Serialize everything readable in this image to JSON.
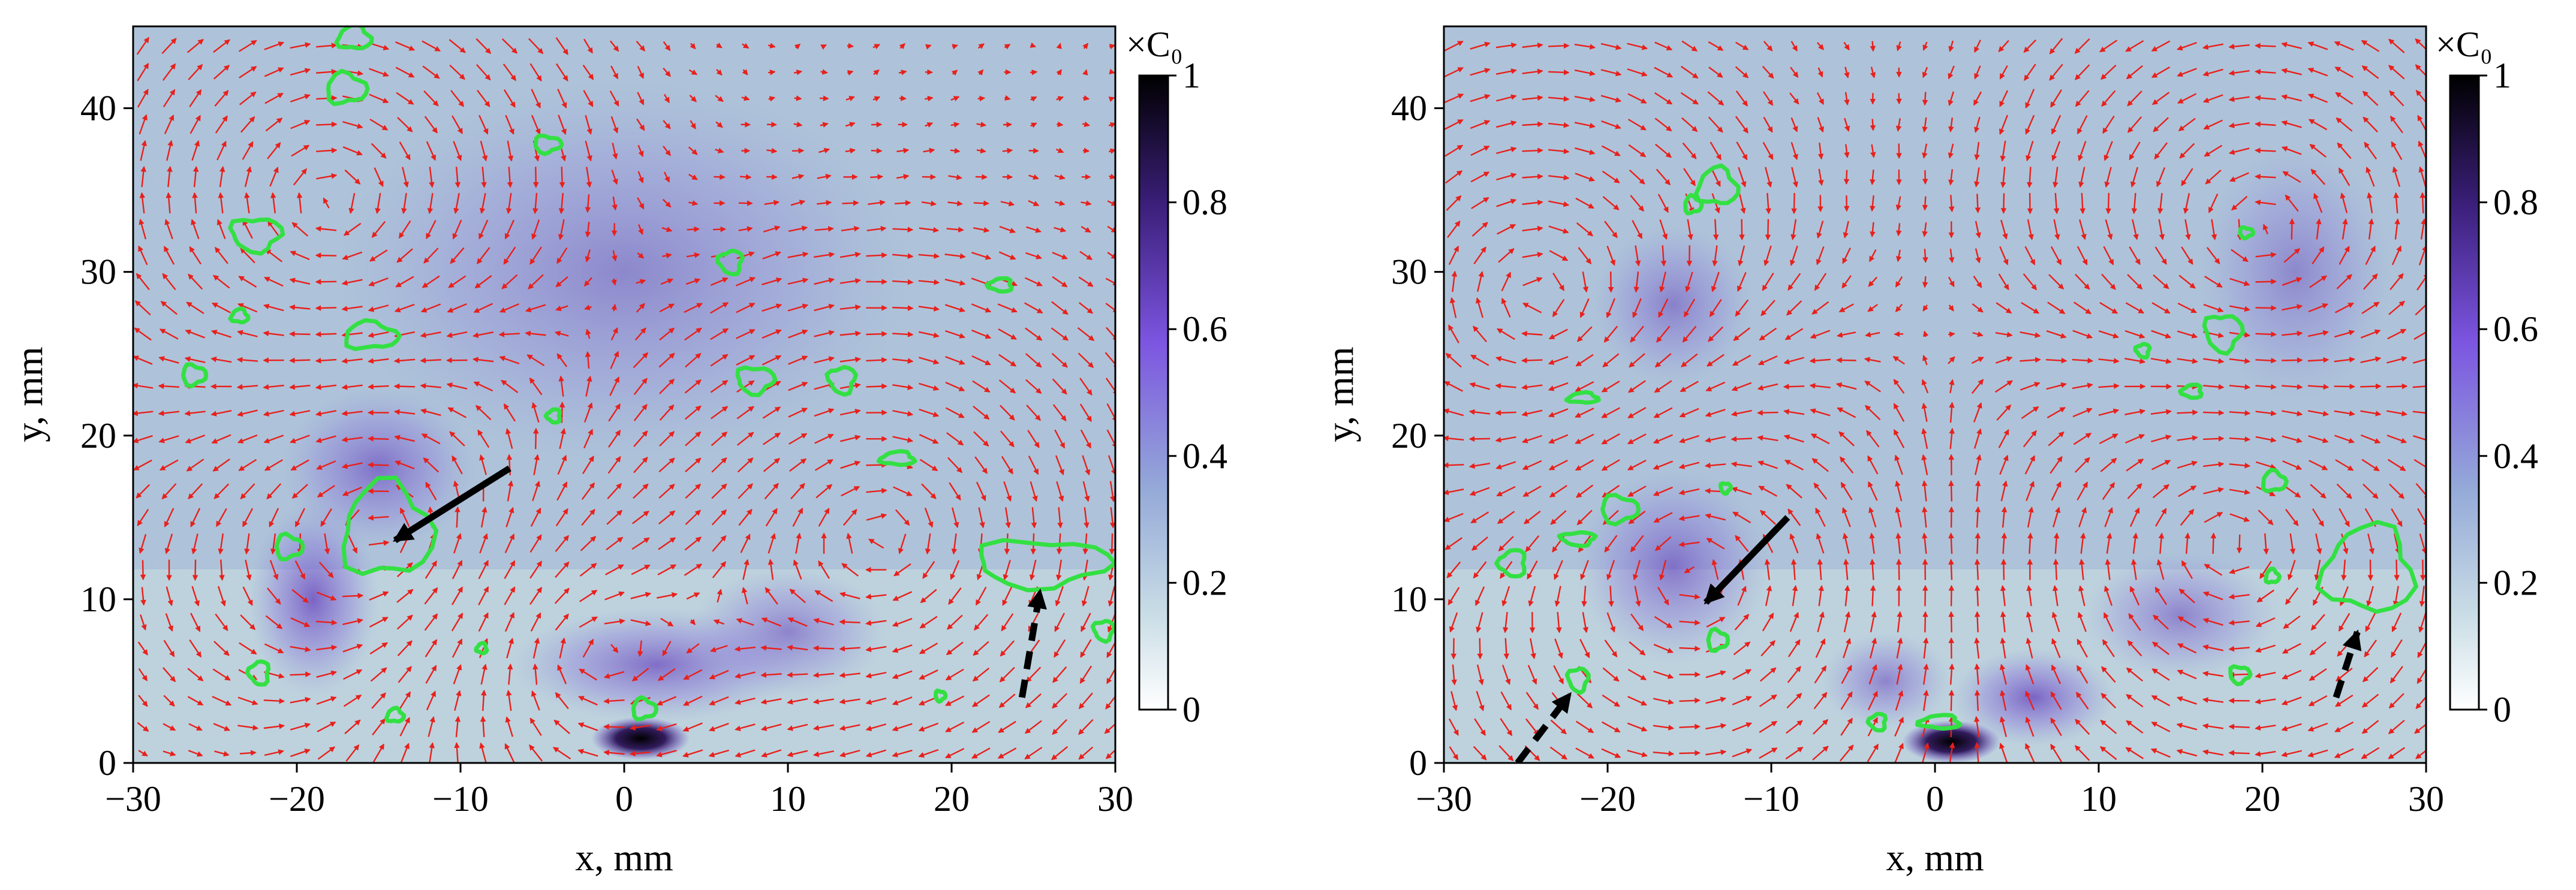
{
  "chart_data": [
    {
      "type": "vector-field",
      "panel": "left",
      "xlabel": "x, mm",
      "ylabel": "y, mm",
      "xlim": [
        -30,
        30
      ],
      "ylim": [
        0,
        45
      ],
      "x_ticks": [
        -30,
        -20,
        -10,
        0,
        10,
        20,
        30
      ],
      "y_ticks": [
        0,
        10,
        20,
        30,
        40
      ],
      "x_tick_labels": [
        "−30",
        "−20",
        "−10",
        "0",
        "10",
        "20",
        "30"
      ],
      "y_tick_labels": [
        "0",
        "10",
        "20",
        "30",
        "40"
      ],
      "vector_color": "#e8201c",
      "contour_color": "#33e043",
      "colorbar": {
        "title": "×C₀",
        "range": [
          0,
          1
        ],
        "ticks": [
          0,
          0.2,
          0.4,
          0.6,
          0.8,
          1
        ],
        "tick_labels": [
          "0",
          "0.2",
          "0.4",
          "0.6",
          "0.8",
          "1"
        ],
        "colors": [
          "#ffffff",
          "#c9dde6",
          "#94a9d8",
          "#7c55e0",
          "#3a1e78",
          "#000000"
        ]
      },
      "vortices": [
        {
          "x": -14,
          "y": 14,
          "rotation": "ccw"
        },
        {
          "x": -18,
          "y": 34,
          "rotation": "cw"
        },
        {
          "x": 16,
          "y": 14,
          "rotation": "cw"
        },
        {
          "x": -3,
          "y": 7,
          "rotation": "cw"
        }
      ],
      "concentration_blobs": [
        {
          "x": 1,
          "y": 1.5,
          "value": 1.0,
          "sx": 3,
          "sy": 1.3
        },
        {
          "x": -19,
          "y": 10,
          "value": 0.42,
          "sx": 4,
          "sy": 6
        },
        {
          "x": -15,
          "y": 18,
          "value": 0.35,
          "sx": 6,
          "sy": 5
        },
        {
          "x": 2,
          "y": 6,
          "value": 0.38,
          "sx": 9,
          "sy": 3.5
        },
        {
          "x": 10,
          "y": 8,
          "value": 0.3,
          "sx": 6,
          "sy": 4
        },
        {
          "x": 0,
          "y": 30,
          "value": 0.25,
          "sx": 18,
          "sy": 12
        }
      ],
      "contours": [
        {
          "x": -16.5,
          "y": 44.3,
          "rx": 1.0,
          "ry": 0.7
        },
        {
          "x": -17,
          "y": 41.2,
          "rx": 1.2,
          "ry": 0.9
        },
        {
          "x": -4.7,
          "y": 37.8,
          "rx": 0.8,
          "ry": 0.5
        },
        {
          "x": -22.5,
          "y": 32.3,
          "rx": 1.5,
          "ry": 1.0
        },
        {
          "x": 6.5,
          "y": 30.6,
          "rx": 0.7,
          "ry": 0.7
        },
        {
          "x": 23,
          "y": 29.2,
          "rx": 0.7,
          "ry": 0.4
        },
        {
          "x": -23.5,
          "y": 27.3,
          "rx": 0.5,
          "ry": 0.4
        },
        {
          "x": -15.5,
          "y": 26.1,
          "rx": 1.6,
          "ry": 0.8
        },
        {
          "x": -26.3,
          "y": 23.7,
          "rx": 0.7,
          "ry": 0.6
        },
        {
          "x": 8,
          "y": 23.4,
          "rx": 1.1,
          "ry": 0.8
        },
        {
          "x": 13.3,
          "y": 23.4,
          "rx": 0.8,
          "ry": 0.8
        },
        {
          "x": -4.3,
          "y": 21.2,
          "rx": 0.4,
          "ry": 0.4
        },
        {
          "x": 16.7,
          "y": 18.6,
          "rx": 1.0,
          "ry": 0.4
        },
        {
          "x": -14.5,
          "y": 14.2,
          "rx": 2.7,
          "ry": 2.8
        },
        {
          "x": -20.5,
          "y": 13.2,
          "rx": 0.8,
          "ry": 0.7
        },
        {
          "x": 25.5,
          "y": 12.2,
          "rx": 4.0,
          "ry": 1.4
        },
        {
          "x": 29.3,
          "y": 8.1,
          "rx": 0.6,
          "ry": 0.6
        },
        {
          "x": -22.3,
          "y": 5.5,
          "rx": 0.6,
          "ry": 0.7
        },
        {
          "x": -8.7,
          "y": 7.0,
          "rx": 0.3,
          "ry": 0.3
        },
        {
          "x": -14,
          "y": 2.9,
          "rx": 0.5,
          "ry": 0.4
        },
        {
          "x": 1.2,
          "y": 3.3,
          "rx": 0.7,
          "ry": 0.6
        },
        {
          "x": 19.3,
          "y": 4.1,
          "rx": 0.3,
          "ry": 0.3
        }
      ],
      "arrows": [
        {
          "from": [
            -7,
            18
          ],
          "to": [
            -14,
            13.6
          ],
          "style": "solid"
        },
        {
          "from": [
            24.3,
            4
          ],
          "to": [
            25.4,
            10.5
          ],
          "style": "dashed"
        }
      ]
    },
    {
      "type": "vector-field",
      "panel": "right",
      "xlabel": "x, mm",
      "ylabel": "y, mm",
      "xlim": [
        -30,
        30
      ],
      "ylim": [
        0,
        45
      ],
      "x_ticks": [
        -30,
        -20,
        -10,
        0,
        10,
        20,
        30
      ],
      "y_ticks": [
        0,
        10,
        20,
        30,
        40
      ],
      "x_tick_labels": [
        "−30",
        "−20",
        "−10",
        "0",
        "10",
        "20",
        "30"
      ],
      "y_tick_labels": [
        "0",
        "10",
        "20",
        "30",
        "40"
      ],
      "vector_color": "#e8201c",
      "contour_color": "#33e043",
      "colorbar": {
        "title": "×C₀",
        "range": [
          0,
          1
        ],
        "ticks": [
          0,
          0.2,
          0.4,
          0.6,
          0.8,
          1
        ],
        "tick_labels": [
          "0",
          "0.2",
          "0.4",
          "0.6",
          "0.8",
          "1"
        ],
        "colors": [
          "#ffffff",
          "#c9dde6",
          "#94a9d8",
          "#7c55e0",
          "#3a1e78",
          "#000000"
        ]
      },
      "vortices": [
        {
          "x": -15,
          "y": 12,
          "rotation": "ccw"
        },
        {
          "x": -24,
          "y": 28,
          "rotation": "cw"
        },
        {
          "x": 18,
          "y": 14,
          "rotation": "cw"
        },
        {
          "x": 20,
          "y": 32,
          "rotation": "ccw"
        }
      ],
      "concentration_blobs": [
        {
          "x": 1,
          "y": 1.3,
          "value": 1.0,
          "sx": 3,
          "sy": 1.3
        },
        {
          "x": -16,
          "y": 12,
          "value": 0.35,
          "sx": 6,
          "sy": 6
        },
        {
          "x": 6,
          "y": 4,
          "value": 0.42,
          "sx": 5,
          "sy": 3
        },
        {
          "x": -3,
          "y": 5,
          "value": 0.3,
          "sx": 4,
          "sy": 3
        },
        {
          "x": 15,
          "y": 9,
          "value": 0.3,
          "sx": 6,
          "sy": 4
        },
        {
          "x": -16,
          "y": 28,
          "value": 0.28,
          "sx": 5,
          "sy": 5
        },
        {
          "x": 22,
          "y": 30,
          "value": 0.25,
          "sx": 6,
          "sy": 8
        }
      ],
      "contours": [
        {
          "x": -13.3,
          "y": 35.2,
          "rx": 1.2,
          "ry": 1.1
        },
        {
          "x": -14.8,
          "y": 34.1,
          "rx": 0.5,
          "ry": 0.5
        },
        {
          "x": 19,
          "y": 32.4,
          "rx": 0.4,
          "ry": 0.3
        },
        {
          "x": 17.6,
          "y": 26.3,
          "rx": 1.1,
          "ry": 1.1
        },
        {
          "x": 12.7,
          "y": 25.2,
          "rx": 0.4,
          "ry": 0.4
        },
        {
          "x": 15.7,
          "y": 22.7,
          "rx": 0.6,
          "ry": 0.4
        },
        {
          "x": -21.5,
          "y": 22.3,
          "rx": 0.9,
          "ry": 0.3
        },
        {
          "x": 20.7,
          "y": 17.2,
          "rx": 0.7,
          "ry": 0.6
        },
        {
          "x": -19.3,
          "y": 15.5,
          "rx": 1.1,
          "ry": 0.8
        },
        {
          "x": -12.8,
          "y": 16.8,
          "rx": 0.3,
          "ry": 0.3
        },
        {
          "x": -21.8,
          "y": 13.7,
          "rx": 1.0,
          "ry": 0.4
        },
        {
          "x": -25.8,
          "y": 12.2,
          "rx": 0.8,
          "ry": 0.8
        },
        {
          "x": 26.5,
          "y": 11.8,
          "rx": 2.7,
          "ry": 2.6
        },
        {
          "x": 20.6,
          "y": 11.4,
          "rx": 0.4,
          "ry": 0.4
        },
        {
          "x": -13.3,
          "y": 7.5,
          "rx": 0.6,
          "ry": 0.6
        },
        {
          "x": 18.6,
          "y": 5.4,
          "rx": 0.6,
          "ry": 0.5
        },
        {
          "x": -21.8,
          "y": 5.1,
          "rx": 0.6,
          "ry": 0.7
        },
        {
          "x": -3.5,
          "y": 2.5,
          "rx": 0.5,
          "ry": 0.5
        },
        {
          "x": 0.3,
          "y": 2.5,
          "rx": 1.2,
          "ry": 0.4
        }
      ],
      "arrows": [
        {
          "from": [
            -9,
            15
          ],
          "to": [
            -14,
            9.8
          ],
          "style": "solid"
        },
        {
          "from": [
            -25.5,
            0
          ],
          "to": [
            -22.3,
            4.2
          ],
          "style": "dashed"
        },
        {
          "from": [
            24.5,
            4
          ],
          "to": [
            25.8,
            8
          ],
          "style": "dashed"
        }
      ]
    }
  ]
}
